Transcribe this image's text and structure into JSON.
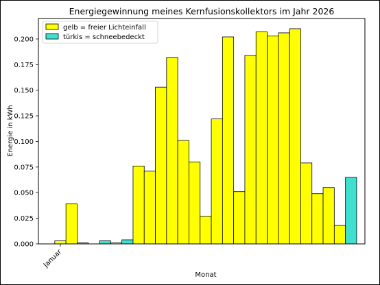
{
  "chart_data": {
    "type": "bar",
    "title": "Energiegewinnung meines Kernfusionskollektors im Jahr 2026",
    "xlabel": "Monat",
    "ylabel": "Energie in kWh",
    "x_tick_labels": [
      "Januar"
    ],
    "ylim": [
      0,
      0.22
    ],
    "y_ticks": [
      0.0,
      0.025,
      0.05,
      0.075,
      0.1,
      0.125,
      0.15,
      0.175,
      0.2
    ],
    "y_tick_labels": [
      "0.000",
      "0.025",
      "0.050",
      "0.075",
      "0.100",
      "0.125",
      "0.150",
      "0.175",
      "0.200"
    ],
    "grid": false,
    "legend_position": "top-left",
    "legend": [
      {
        "label": "gelb = freier Lichteinfall",
        "color": "#ffff00"
      },
      {
        "label": "türkis = schneebedeckt",
        "color": "#40e0d0"
      }
    ],
    "values": [
      0.003,
      0.039,
      0.001,
      0.0,
      0.003,
      0.001,
      0.004,
      0.076,
      0.071,
      0.153,
      0.182,
      0.101,
      0.08,
      0.027,
      0.122,
      0.202,
      0.051,
      0.184,
      0.207,
      0.203,
      0.206,
      0.21,
      0.079,
      0.049,
      0.055,
      0.018,
      0.065
    ],
    "colors": [
      "#ffff00",
      "#ffff00",
      "#40e0d0",
      "#ffff00",
      "#40e0d0",
      "#ffff00",
      "#40e0d0",
      "#ffff00",
      "#ffff00",
      "#ffff00",
      "#ffff00",
      "#ffff00",
      "#ffff00",
      "#ffff00",
      "#ffff00",
      "#ffff00",
      "#ffff00",
      "#ffff00",
      "#ffff00",
      "#ffff00",
      "#ffff00",
      "#ffff00",
      "#ffff00",
      "#ffff00",
      "#ffff00",
      "#ffff00",
      "#40e0d0"
    ]
  }
}
